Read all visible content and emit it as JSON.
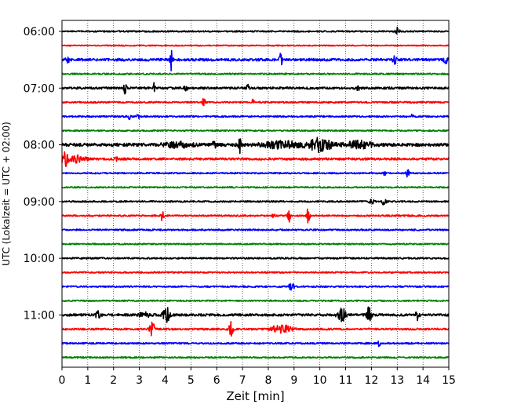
{
  "chart_data": {
    "type": "line",
    "title": "",
    "xlabel": "Zeit  [min]",
    "ylabel": "UTC (Lokalzeit = UTC + 02:00)",
    "xlim": [
      0,
      15
    ],
    "x_ticks": [
      "0",
      "1",
      "2",
      "3",
      "4",
      "5",
      "6",
      "7",
      "8",
      "9",
      "10",
      "11",
      "12",
      "13",
      "14",
      "15"
    ],
    "grid": "vertical dotted",
    "legend": "none",
    "traces_per_hour": 4,
    "hour_labels": [
      "06:00",
      "07:00",
      "08:00",
      "09:00",
      "10:00",
      "11:00"
    ],
    "colors": [
      "#000000",
      "#ff0000",
      "#0000ff",
      "#008000"
    ],
    "traces": [
      {
        "row": 0,
        "color": "#000000",
        "noise": 0.9,
        "events": [
          [
            13.0,
            4.5,
            0.08
          ]
        ]
      },
      {
        "row": 1,
        "color": "#ff0000",
        "noise": 0.7,
        "events": []
      },
      {
        "row": 2,
        "color": "#0000ff",
        "noise": 1.6,
        "events": [
          [
            4.25,
            14,
            0.05
          ],
          [
            8.5,
            10,
            0.06
          ],
          [
            12.9,
            5,
            0.06
          ],
          [
            14.9,
            4,
            0.1
          ],
          [
            0.2,
            3,
            0.1
          ]
        ]
      },
      {
        "row": 3,
        "color": "#008000",
        "noise": 1.0,
        "events": []
      },
      {
        "row": 4,
        "color": "#000000",
        "noise": 1.4,
        "events": [
          [
            2.45,
            7,
            0.05
          ],
          [
            3.55,
            8,
            0.05
          ],
          [
            4.8,
            4,
            0.05
          ],
          [
            7.2,
            4,
            0.05
          ],
          [
            11.5,
            4,
            0.06
          ]
        ]
      },
      {
        "row": 5,
        "color": "#ff0000",
        "noise": 1.0,
        "events": [
          [
            5.5,
            7,
            0.05
          ],
          [
            7.4,
            3,
            0.05
          ]
        ]
      },
      {
        "row": 6,
        "color": "#0000ff",
        "noise": 1.0,
        "events": [
          [
            2.6,
            5,
            0.05
          ],
          [
            2.95,
            3,
            0.05
          ],
          [
            13.6,
            3,
            0.05
          ]
        ]
      },
      {
        "row": 7,
        "color": "#008000",
        "noise": 0.9,
        "events": []
      },
      {
        "row": 8,
        "color": "#000000",
        "noise": 2.0,
        "events": [
          [
            4.5,
            3,
            0.5
          ],
          [
            5.9,
            6,
            0.05
          ],
          [
            6.9,
            10,
            0.05
          ],
          [
            8.5,
            4,
            0.7
          ],
          [
            10.0,
            8,
            0.45
          ],
          [
            11.5,
            4,
            0.5
          ]
        ]
      },
      {
        "row": 9,
        "color": "#ff0000",
        "noise": 1.4,
        "events": [
          [
            0.1,
            10,
            0.12
          ],
          [
            0.6,
            4,
            0.3
          ],
          [
            2.1,
            3,
            0.05
          ]
        ]
      },
      {
        "row": 10,
        "color": "#0000ff",
        "noise": 0.9,
        "events": [
          [
            12.5,
            3,
            0.05
          ],
          [
            13.4,
            5,
            0.06
          ]
        ]
      },
      {
        "row": 11,
        "color": "#008000",
        "noise": 0.9,
        "events": []
      },
      {
        "row": 12,
        "color": "#000000",
        "noise": 1.0,
        "events": [
          [
            12.0,
            3,
            0.1
          ],
          [
            12.5,
            6,
            0.08
          ]
        ]
      },
      {
        "row": 13,
        "color": "#ff0000",
        "noise": 1.0,
        "events": [
          [
            3.9,
            9,
            0.05
          ],
          [
            8.2,
            3,
            0.05
          ],
          [
            8.8,
            8,
            0.05
          ],
          [
            9.55,
            12,
            0.05
          ]
        ]
      },
      {
        "row": 14,
        "color": "#0000ff",
        "noise": 1.0,
        "events": []
      },
      {
        "row": 15,
        "color": "#008000",
        "noise": 0.9,
        "events": []
      },
      {
        "row": 16,
        "color": "#000000",
        "noise": 1.0,
        "events": []
      },
      {
        "row": 17,
        "color": "#ff0000",
        "noise": 1.0,
        "events": []
      },
      {
        "row": 18,
        "color": "#0000ff",
        "noise": 1.0,
        "events": [
          [
            8.9,
            5,
            0.1
          ]
        ]
      },
      {
        "row": 19,
        "color": "#008000",
        "noise": 0.9,
        "events": []
      },
      {
        "row": 20,
        "color": "#000000",
        "noise": 1.5,
        "events": [
          [
            1.4,
            4,
            0.1
          ],
          [
            3.2,
            3,
            0.2
          ],
          [
            4.05,
            11,
            0.12
          ],
          [
            10.85,
            9,
            0.15
          ],
          [
            11.9,
            9,
            0.1
          ],
          [
            13.8,
            6,
            0.08
          ]
        ]
      },
      {
        "row": 21,
        "color": "#ff0000",
        "noise": 1.2,
        "events": [
          [
            3.5,
            8,
            0.1
          ],
          [
            6.55,
            9,
            0.08
          ],
          [
            8.5,
            6,
            0.35
          ]
        ]
      },
      {
        "row": 22,
        "color": "#0000ff",
        "noise": 1.0,
        "events": [
          [
            12.3,
            4,
            0.05
          ]
        ]
      },
      {
        "row": 23,
        "color": "#008000",
        "noise": 0.9,
        "events": []
      }
    ]
  }
}
